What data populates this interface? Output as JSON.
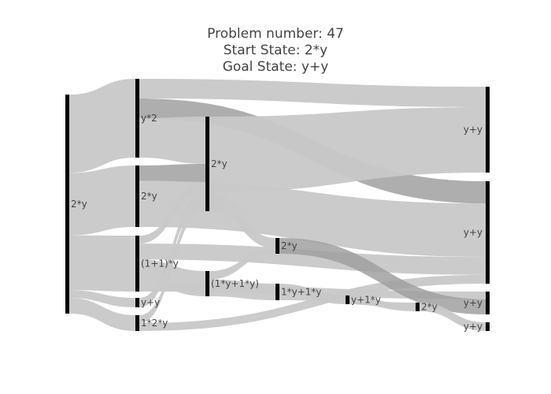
{
  "title": {
    "line1": "Problem number: 47",
    "line2": "Start State: 2*y",
    "line3": "Goal State: y+y"
  },
  "colors": {
    "background": "#ffffff",
    "node": "#000000",
    "link_light": "#c8c8c8",
    "link_dark": "#a0a0a0",
    "text": "#444444"
  },
  "chart_data": {
    "type": "sankey",
    "nodes": [
      {
        "id": "n0",
        "label": "2*y",
        "column": 0
      },
      {
        "id": "n1",
        "label": "y*2",
        "column": 1
      },
      {
        "id": "n2",
        "label": "2*y",
        "column": 1
      },
      {
        "id": "n3",
        "label": "(1+1)*y",
        "column": 1
      },
      {
        "id": "n4",
        "label": "y+y",
        "column": 1
      },
      {
        "id": "n5",
        "label": "1*2*y",
        "column": 1
      },
      {
        "id": "n6",
        "label": "2*y",
        "column": 2
      },
      {
        "id": "n7",
        "label": "(1*y+1*y)",
        "column": 2
      },
      {
        "id": "n8",
        "label": "2*y",
        "column": 3
      },
      {
        "id": "n9",
        "label": "1*y+1*y",
        "column": 3
      },
      {
        "id": "n10",
        "label": "y+1*y",
        "column": 4
      },
      {
        "id": "n11",
        "label": "2*y",
        "column": 5
      },
      {
        "id": "n12",
        "label": "y+y",
        "column": 6
      },
      {
        "id": "n13",
        "label": "y+y",
        "column": 6
      },
      {
        "id": "n14",
        "label": "y+y",
        "column": 6
      },
      {
        "id": "n15",
        "label": "y+y",
        "column": 6
      }
    ],
    "links": [
      {
        "source": "n0",
        "target": "n1",
        "value": 10,
        "shade": "light"
      },
      {
        "source": "n0",
        "target": "n2",
        "value": 8,
        "shade": "light"
      },
      {
        "source": "n0",
        "target": "n3",
        "value": 7,
        "shade": "light"
      },
      {
        "source": "n0",
        "target": "n4",
        "value": 1,
        "shade": "light"
      },
      {
        "source": "n0",
        "target": "n5",
        "value": 2,
        "shade": "light"
      },
      {
        "source": "n1",
        "target": "n12",
        "value": 2.5,
        "shade": "light"
      },
      {
        "source": "n1",
        "target": "n13",
        "value": 2.5,
        "shade": "dark"
      },
      {
        "source": "n1",
        "target": "n6",
        "value": 5,
        "shade": "light"
      },
      {
        "source": "n2",
        "target": "n6",
        "value": 2,
        "shade": "dark"
      },
      {
        "source": "n2",
        "target": "n13",
        "value": 6,
        "shade": "light"
      },
      {
        "source": "n3",
        "target": "n6",
        "value": 1,
        "shade": "light"
      },
      {
        "source": "n3",
        "target": "n13",
        "value": 2,
        "shade": "light"
      },
      {
        "source": "n3",
        "target": "n7",
        "value": 3,
        "shade": "light"
      },
      {
        "source": "n3",
        "target": "n14",
        "value": 1,
        "shade": "light"
      },
      {
        "source": "n4",
        "target": "n6",
        "value": 1,
        "shade": "light"
      },
      {
        "source": "n5",
        "target": "n6",
        "value": 1,
        "shade": "light"
      },
      {
        "source": "n5",
        "target": "n13",
        "value": 1,
        "shade": "light"
      },
      {
        "source": "n6",
        "target": "n12",
        "value": 8,
        "shade": "light"
      },
      {
        "source": "n6",
        "target": "n8",
        "value": 2,
        "shade": "light"
      },
      {
        "source": "n7",
        "target": "n8",
        "value": 1,
        "shade": "light"
      },
      {
        "source": "n7",
        "target": "n9",
        "value": 2,
        "shade": "light"
      },
      {
        "source": "n8",
        "target": "n14",
        "value": 2,
        "shade": "dark"
      },
      {
        "source": "n9",
        "target": "n10",
        "value": 1,
        "shade": "light"
      },
      {
        "source": "n9",
        "target": "n11",
        "value": 1,
        "shade": "light"
      },
      {
        "source": "n10",
        "target": "n11",
        "value": 1,
        "shade": "light"
      },
      {
        "source": "n11",
        "target": "n15",
        "value": 1,
        "shade": "light"
      }
    ]
  }
}
